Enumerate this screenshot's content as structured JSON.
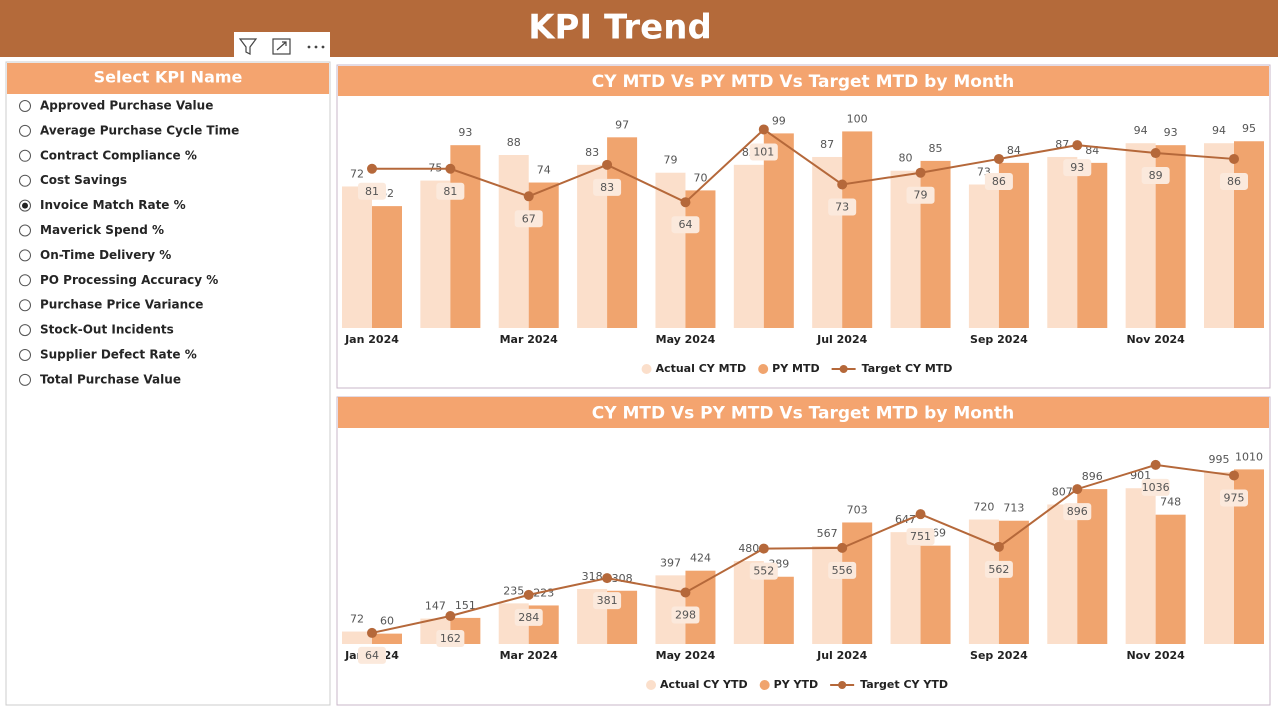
{
  "header": {
    "title": "KPI Trend"
  },
  "slicer": {
    "title": "Select KPI Name",
    "selected": 4,
    "options": [
      "Approved Purchase Value",
      "Average Purchase Cycle Time",
      "Contract Compliance %",
      "Cost Savings",
      "Invoice Match Rate %",
      "Maverick Spend %",
      "On-Time Delivery %",
      "PO Processing Accuracy %",
      "Purchase Price Variance",
      "Stock-Out Incidents",
      "Supplier Defect Rate %",
      "Total Purchase Value"
    ]
  },
  "chart_data": [
    {
      "type": "bar-line",
      "title": "CY MTD Vs PY MTD Vs Target MTD by Month",
      "categories": [
        "Jan 2024",
        null,
        "Mar 2024",
        null,
        "May 2024",
        null,
        "Jul 2024",
        null,
        "Sep 2024",
        null,
        "Nov 2024",
        null
      ],
      "ylim": [
        0,
        117
      ],
      "series": [
        {
          "name": "Actual CY MTD",
          "color": "#fbdfcb",
          "kind": "bar",
          "values": [
            72,
            75,
            88,
            83,
            79,
            83,
            87,
            80,
            73,
            87,
            94,
            94
          ]
        },
        {
          "name": "PY MTD",
          "color": "#f0a46e",
          "kind": "bar",
          "values": [
            62,
            93,
            74,
            97,
            70,
            99,
            100,
            85,
            84,
            84,
            93,
            95
          ]
        },
        {
          "name": "Target CY MTD",
          "color": "#b5683a",
          "kind": "line",
          "values": [
            81,
            81,
            67,
            83,
            64,
            101,
            73,
            79,
            86,
            93,
            89,
            86
          ]
        }
      ]
    },
    {
      "type": "bar-line",
      "title": "CY MTD Vs PY MTD Vs Target MTD by Month",
      "categories": [
        "Jan 2024",
        null,
        "Mar 2024",
        null,
        "May 2024",
        null,
        "Jul 2024",
        null,
        "Sep 2024",
        null,
        "Nov 2024",
        null
      ],
      "ylim": [
        0,
        1180
      ],
      "series": [
        {
          "name": "Actual CY YTD",
          "color": "#fbdfcb",
          "kind": "bar",
          "values": [
            72,
            147,
            235,
            318,
            397,
            480,
            567,
            647,
            720,
            807,
            901,
            995
          ]
        },
        {
          "name": "PY YTD",
          "color": "#f0a46e",
          "kind": "bar",
          "values": [
            60,
            151,
            223,
            308,
            424,
            389,
            703,
            569,
            713,
            896,
            748,
            1010
          ]
        },
        {
          "name": "Target CY YTD",
          "color": "#b5683a",
          "kind": "line",
          "values": [
            64,
            162,
            284,
            381,
            298,
            552,
            556,
            751,
            562,
            896,
            1036,
            975
          ]
        }
      ]
    }
  ]
}
